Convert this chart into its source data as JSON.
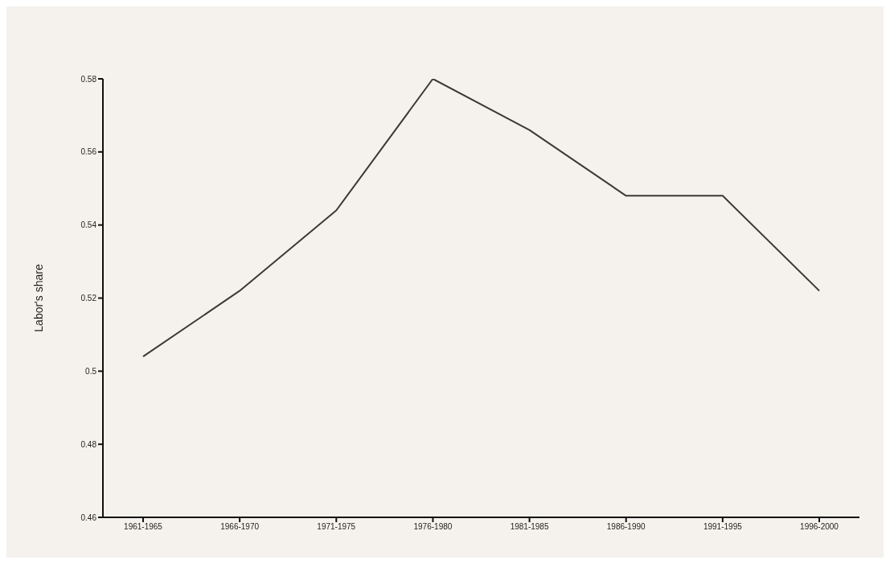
{
  "chart_data": {
    "type": "line",
    "ylabel": "Labor's share",
    "categories": [
      "1961-1965",
      "1966-1970",
      "1971-1975",
      "1976-1980",
      "1981-1985",
      "1986-1990",
      "1991-1995",
      "1996-2000"
    ],
    "series": [
      {
        "color": "#3a3a3a",
        "values": [
          0.504,
          0.522,
          0.544,
          0.58,
          0.566,
          0.548,
          0.548,
          0.522
        ]
      }
    ],
    "ylim": [
      0.46,
      0.58
    ],
    "yticks": [
      0.46,
      0.48,
      0.5,
      0.52,
      0.54,
      0.56,
      0.58
    ],
    "grid": false,
    "legend": false,
    "marker": "none",
    "line_style": "solid"
  }
}
